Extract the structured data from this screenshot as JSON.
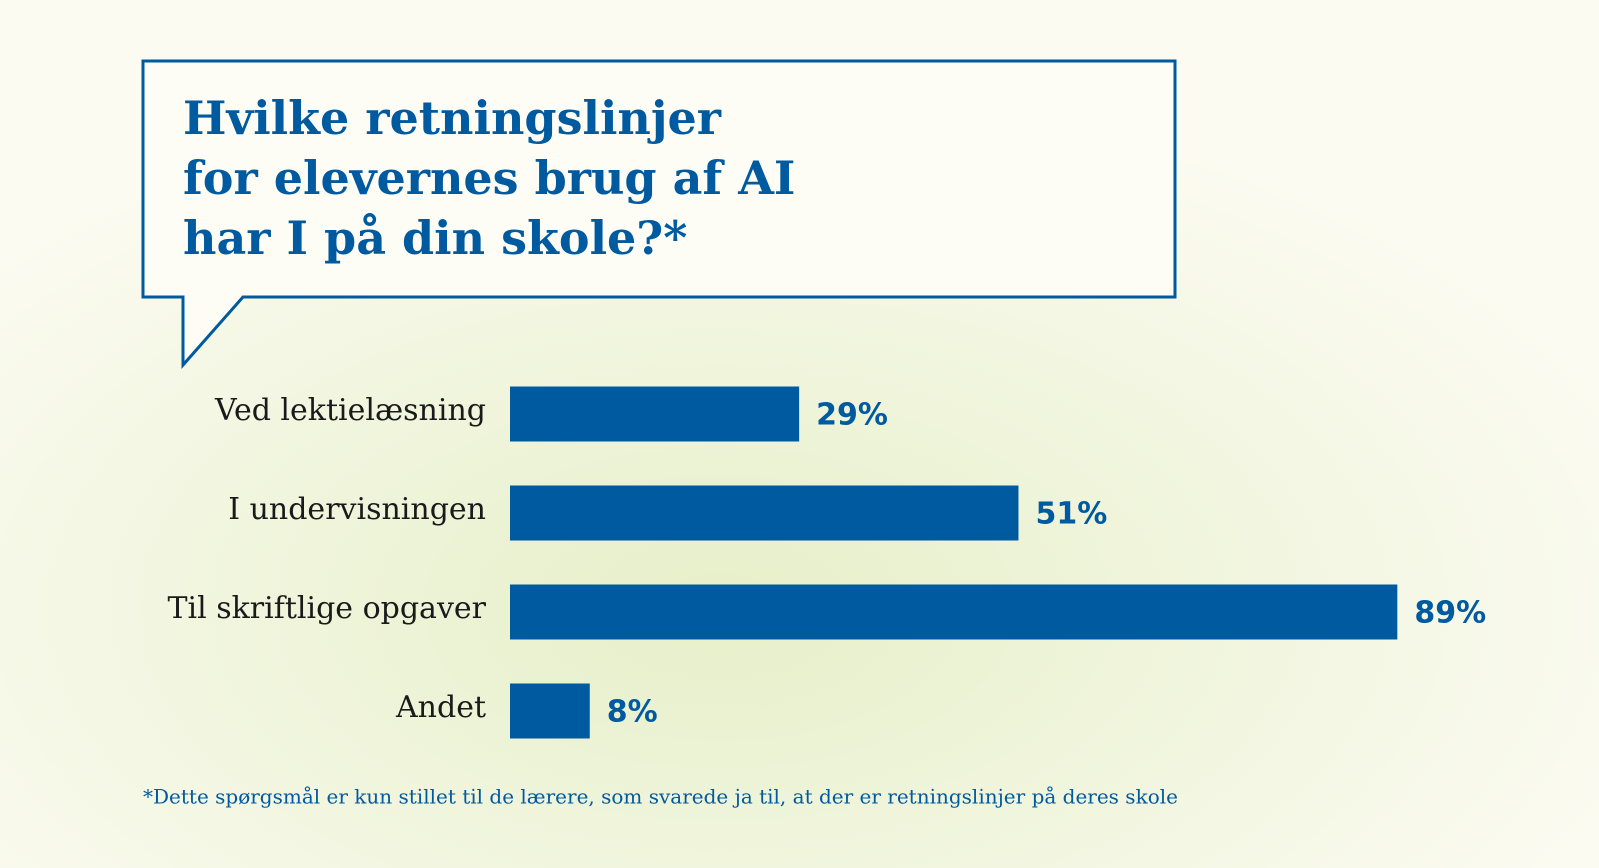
{
  "chart_data": {
    "type": "bar",
    "orientation": "horizontal",
    "title_lines": [
      "Hvilke retningslinjer",
      "for elevernes brug af AI",
      "har I på din skole?*"
    ],
    "categories": [
      "Ved lektielæsning",
      "I undervisningen",
      "Til skriftlige opgaver",
      "Andet"
    ],
    "values": [
      29,
      51,
      89,
      8
    ],
    "value_labels": [
      "29%",
      "51%",
      "89%",
      "8%"
    ],
    "color": "#005aa0",
    "footnote": "*Dette spørgsmål er kun stillet til de lærere, som svarede ja til, at der er retningslinjer på deres skole"
  }
}
